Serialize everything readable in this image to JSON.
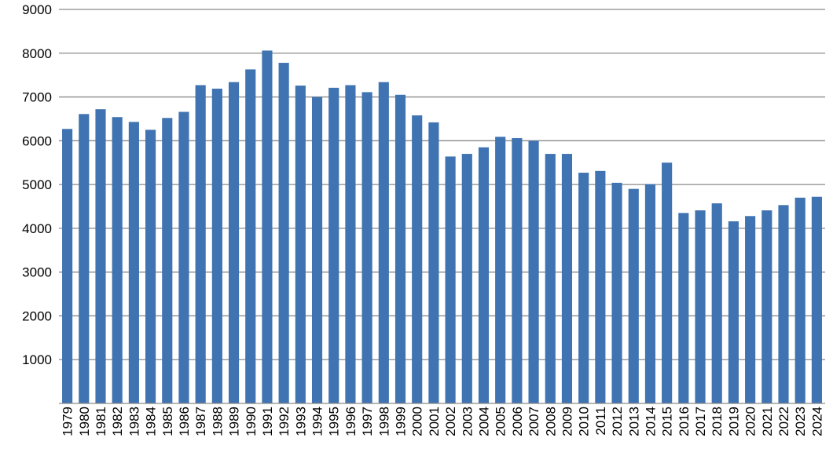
{
  "chart_data": {
    "type": "bar",
    "title": "",
    "xlabel": "",
    "ylabel": "",
    "ylim": [
      0,
      9000
    ],
    "yticks": [
      1000,
      2000,
      3000,
      4000,
      5000,
      6000,
      7000,
      8000,
      9000
    ],
    "grid": true,
    "legend": "none",
    "bar_color": "#3f73b1",
    "categories": [
      "1979",
      "1980",
      "1981",
      "1982",
      "1983",
      "1984",
      "1985",
      "1986",
      "1987",
      "1988",
      "1989",
      "1990",
      "1991",
      "1992",
      "1993",
      "1994",
      "1995",
      "1996",
      "1997",
      "1998",
      "1999",
      "2000",
      "2001",
      "2002",
      "2003",
      "2004",
      "2005",
      "2006",
      "2007",
      "2008",
      "2009",
      "2010",
      "2011",
      "2012",
      "2013",
      "2014",
      "2015",
      "2016",
      "2017",
      "2018",
      "2019",
      "2020",
      "2021",
      "2022",
      "2023",
      "2024"
    ],
    "values": [
      6270,
      6610,
      6720,
      6540,
      6430,
      6250,
      6520,
      6660,
      7270,
      7190,
      7340,
      7630,
      8060,
      7780,
      7260,
      7000,
      7210,
      7270,
      7110,
      7340,
      7050,
      6580,
      6420,
      5640,
      5700,
      5850,
      6090,
      6060,
      6000,
      5700,
      5700,
      5270,
      5310,
      5040,
      4900,
      5010,
      5500,
      4350,
      4410,
      4570,
      4160,
      4280,
      4410,
      4530,
      4700,
      4720
    ]
  }
}
